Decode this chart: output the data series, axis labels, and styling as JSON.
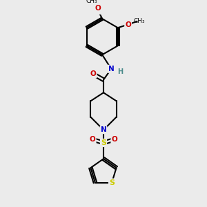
{
  "bg_color": "#ebebeb",
  "bond_color": "#000000",
  "bond_width": 1.5,
  "atom_colors": {
    "C": "#000000",
    "N": "#0000cc",
    "O": "#cc0000",
    "S": "#cccc00",
    "H": "#4a8a8a"
  },
  "font_size": 7.5
}
